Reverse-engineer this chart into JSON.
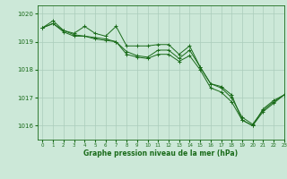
{
  "title": "Graphe pression niveau de la mer (hPa)",
  "xlim": [
    -0.5,
    23
  ],
  "ylim": [
    1015.5,
    1020.3
  ],
  "yticks": [
    1016,
    1017,
    1018,
    1019,
    1020
  ],
  "xticks": [
    0,
    1,
    2,
    3,
    4,
    5,
    6,
    7,
    8,
    9,
    10,
    11,
    12,
    13,
    14,
    15,
    16,
    17,
    18,
    19,
    20,
    21,
    22,
    23
  ],
  "background_color": "#cce8d8",
  "grid_color": "#aaccbb",
  "line_color": "#1a6b1a",
  "series": [
    [
      1019.5,
      1019.75,
      1019.4,
      1019.3,
      1019.55,
      1019.3,
      1019.2,
      1019.55,
      1018.85,
      1018.85,
      1018.85,
      1018.9,
      1018.9,
      1018.55,
      1018.85,
      1018.1,
      1017.5,
      1017.4,
      1017.1,
      1016.2,
      1016.0,
      1016.6,
      1016.9,
      1017.1
    ],
    [
      1019.5,
      1019.65,
      1019.4,
      1019.25,
      1019.2,
      1019.15,
      1019.1,
      1019.0,
      1018.65,
      1018.5,
      1018.45,
      1018.7,
      1018.7,
      1018.4,
      1018.7,
      1018.1,
      1017.5,
      1017.35,
      1017.0,
      1016.3,
      1016.05,
      1016.55,
      1016.85,
      1017.1
    ],
    [
      1019.5,
      1019.65,
      1019.35,
      1019.2,
      1019.2,
      1019.1,
      1019.05,
      1019.0,
      1018.55,
      1018.45,
      1018.4,
      1018.55,
      1018.55,
      1018.3,
      1018.5,
      1018.0,
      1017.35,
      1017.2,
      1016.85,
      1016.2,
      1016.0,
      1016.5,
      1016.8,
      1017.1
    ]
  ],
  "figsize": [
    3.2,
    2.0
  ],
  "dpi": 100,
  "title_fontsize": 5.5,
  "xlabel_fontsize": 5.0,
  "ylabel_fontsize": 5.0,
  "xtick_fontsize": 4.0,
  "ytick_fontsize": 5.0,
  "linewidth": 0.7,
  "markersize": 2.5,
  "markeredgewidth": 0.7
}
